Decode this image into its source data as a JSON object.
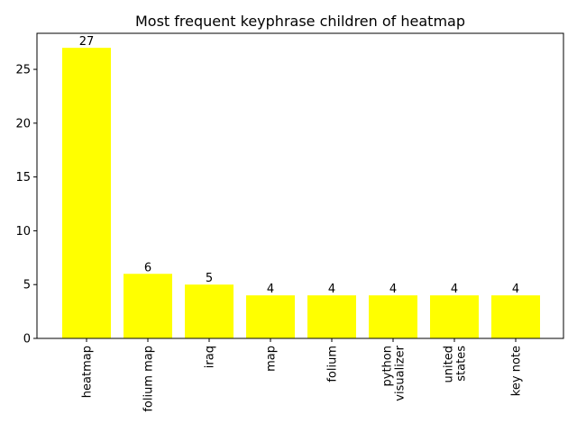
{
  "chart_data": {
    "type": "bar",
    "title": "Most frequent keyphrase children of heatmap",
    "xlabel": "",
    "ylabel": "",
    "categories": [
      [
        "heatmap"
      ],
      [
        "folium map"
      ],
      [
        "iraq"
      ],
      [
        "map"
      ],
      [
        "folium"
      ],
      [
        "python",
        "visualizer"
      ],
      [
        "united",
        "states"
      ],
      [
        "key note"
      ]
    ],
    "values": [
      27,
      6,
      5,
      4,
      4,
      4,
      4,
      4
    ],
    "ylim": [
      0,
      28.35
    ],
    "yticks": [
      0,
      5,
      10,
      15,
      20,
      25
    ],
    "grid": false,
    "legend": "none",
    "bar_color": "#ffff00",
    "axis_color": "#000000",
    "text_color": "#000000"
  }
}
